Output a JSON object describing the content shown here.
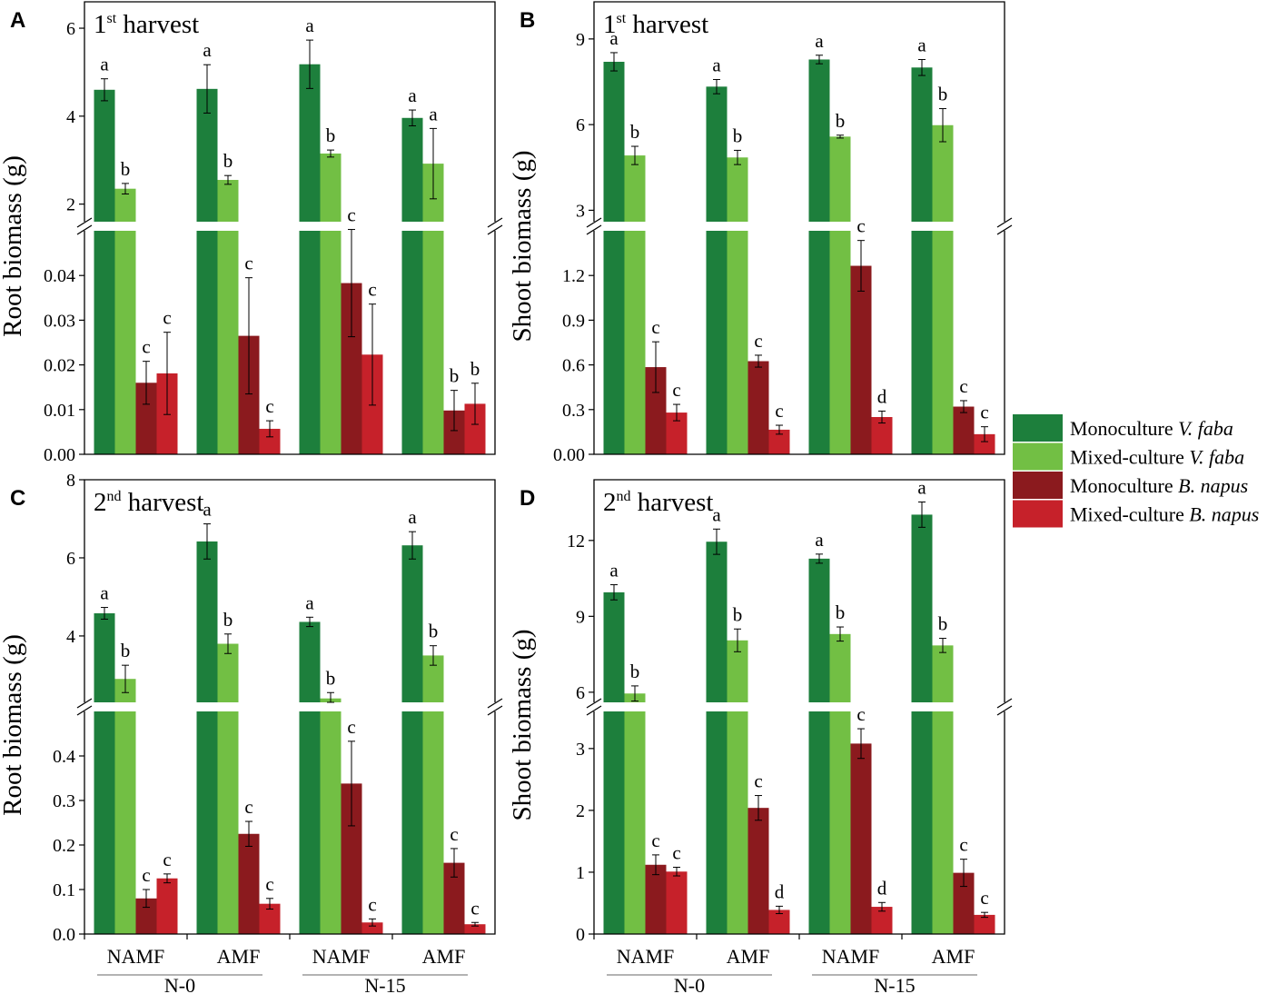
{
  "colors": {
    "mono_faba": "#1d7f3c",
    "mixed_faba": "#72bf44",
    "mono_napus": "#8b1a1e",
    "mixed_napus": "#c6212a",
    "group_line": "#9a9a9a"
  },
  "legend": {
    "items": [
      {
        "prefix": "Monoculture ",
        "species": "V. faba",
        "color_key": "mono_faba"
      },
      {
        "prefix": "Mixed-culture ",
        "species": "V. faba",
        "color_key": "mixed_faba"
      },
      {
        "prefix": "Monoculture ",
        "species": "B. napus",
        "color_key": "mono_napus"
      },
      {
        "prefix": "Mixed-culture ",
        "species": "B. napus",
        "color_key": "mixed_napus"
      }
    ]
  },
  "x_axis": {
    "categories": [
      "NAMF",
      "AMF",
      "NAMF",
      "AMF"
    ],
    "groups": [
      "N-0",
      "N-15"
    ]
  },
  "chart_data": [
    {
      "panel": "A",
      "type": "bar",
      "title_num": "1",
      "title_sup": "st",
      "title_rest": " harvest",
      "ylabel": "Root biomass (g)",
      "categories": [
        "NAMF",
        "AMF",
        "NAMF",
        "AMF"
      ],
      "groups": [
        "N-0",
        "N-15"
      ],
      "broken_axis": {
        "upper": {
          "range": [
            1.6,
            6.6
          ],
          "ticks": [
            "2",
            "4",
            "6"
          ],
          "tick_values": [
            2,
            4,
            6
          ]
        },
        "lower": {
          "range": [
            0,
            0.05
          ],
          "ticks": [
            "0.00",
            "0.01",
            "0.02",
            "0.03",
            "0.04"
          ],
          "tick_values": [
            0,
            0.01,
            0.02,
            0.03,
            0.04
          ]
        }
      },
      "series": [
        {
          "name": "Monoculture V. faba",
          "values": [
            4.6,
            4.62,
            5.18,
            3.96
          ],
          "errors": [
            0.25,
            0.55,
            0.55,
            0.18
          ],
          "letters": [
            "a",
            "a",
            "a",
            "a"
          ]
        },
        {
          "name": "Mixed-culture V. faba",
          "values": [
            2.35,
            2.55,
            3.15,
            2.92
          ],
          "errors": [
            0.12,
            0.1,
            0.08,
            0.8
          ],
          "letters": [
            "b",
            "b",
            "b",
            "a"
          ]
        },
        {
          "name": "Monoculture B. napus",
          "values": [
            0.016,
            0.0265,
            0.0383,
            0.0098
          ],
          "errors": [
            0.0048,
            0.013,
            0.012,
            0.0045
          ],
          "letters": [
            "c",
            "c",
            "c",
            "b"
          ]
        },
        {
          "name": "Mixed-culture B. napus",
          "values": [
            0.0181,
            0.0057,
            0.0223,
            0.0113
          ],
          "errors": [
            0.0092,
            0.0018,
            0.0113,
            0.0046
          ],
          "letters": [
            "c",
            "c",
            "c",
            "b"
          ]
        }
      ]
    },
    {
      "panel": "B",
      "type": "bar",
      "title_num": "1",
      "title_sup": "st",
      "title_rest": " harvest",
      "ylabel": "Shoot biomass (g)",
      "categories": [
        "NAMF",
        "AMF",
        "NAMF",
        "AMF"
      ],
      "groups": [
        "N-0",
        "N-15"
      ],
      "broken_axis": {
        "upper": {
          "range": [
            2.6,
            10.3
          ],
          "ticks": [
            "3",
            "6",
            "9"
          ],
          "tick_values": [
            3,
            6,
            9
          ]
        },
        "lower": {
          "range": [
            0,
            1.5
          ],
          "ticks": [
            "0.00",
            "0.3",
            "0.6",
            "0.9",
            "1.2"
          ],
          "tick_values": [
            0,
            0.3,
            0.6,
            0.9,
            1.2
          ]
        }
      },
      "series": [
        {
          "name": "Monoculture V. faba",
          "values": [
            8.2,
            7.33,
            8.28,
            8.0
          ],
          "errors": [
            0.32,
            0.25,
            0.15,
            0.28
          ],
          "letters": [
            "a",
            "a",
            "a",
            "a"
          ]
        },
        {
          "name": "Mixed-culture V. faba",
          "values": [
            4.92,
            4.85,
            5.58,
            5.98
          ],
          "errors": [
            0.32,
            0.25,
            0.05,
            0.58
          ],
          "letters": [
            "b",
            "b",
            "b",
            "b"
          ]
        },
        {
          "name": "Monoculture B. napus",
          "values": [
            0.585,
            0.625,
            1.265,
            0.32
          ],
          "errors": [
            0.17,
            0.04,
            0.17,
            0.04
          ],
          "letters": [
            "c",
            "c",
            "c",
            "c"
          ]
        },
        {
          "name": "Mixed-culture B. napus",
          "values": [
            0.28,
            0.165,
            0.25,
            0.135
          ],
          "errors": [
            0.055,
            0.03,
            0.04,
            0.05
          ],
          "letters": [
            "c",
            "c",
            "d",
            "c"
          ]
        }
      ]
    },
    {
      "panel": "C",
      "type": "bar",
      "title_num": "2",
      "title_sup": "nd",
      "title_rest": " harvest",
      "ylabel": "Root biomass (g)",
      "categories": [
        "NAMF",
        "AMF",
        "NAMF",
        "AMF"
      ],
      "groups": [
        "N-0",
        "N-15"
      ],
      "broken_axis": {
        "upper": {
          "range": [
            2.3,
            8.0
          ],
          "ticks": [
            "4",
            "6",
            "8"
          ],
          "tick_values": [
            4,
            6,
            8
          ]
        },
        "lower": {
          "range": [
            0,
            0.5
          ],
          "ticks": [
            "0.0",
            "0.1",
            "0.2",
            "0.3",
            "0.4"
          ],
          "tick_values": [
            0,
            0.1,
            0.2,
            0.3,
            0.4
          ]
        }
      },
      "series": [
        {
          "name": "Monoculture V. faba",
          "values": [
            4.58,
            6.42,
            4.36,
            6.32
          ],
          "errors": [
            0.15,
            0.45,
            0.12,
            0.35
          ],
          "letters": [
            "a",
            "a",
            "a",
            "a"
          ]
        },
        {
          "name": "Mixed-culture V. faba",
          "values": [
            2.9,
            3.8,
            2.4,
            3.5
          ],
          "errors": [
            0.35,
            0.25,
            0.15,
            0.25
          ],
          "letters": [
            "b",
            "b",
            "b",
            "b"
          ]
        },
        {
          "name": "Monoculture B. napus",
          "values": [
            0.08,
            0.225,
            0.338,
            0.16
          ],
          "errors": [
            0.02,
            0.028,
            0.095,
            0.032
          ],
          "letters": [
            "c",
            "c",
            "c",
            "c"
          ]
        },
        {
          "name": "Mixed-culture B. napus",
          "values": [
            0.125,
            0.068,
            0.026,
            0.022
          ],
          "errors": [
            0.01,
            0.012,
            0.008,
            0.004
          ],
          "letters": [
            "c",
            "c",
            "c",
            "c"
          ]
        }
      ]
    },
    {
      "panel": "D",
      "type": "bar",
      "title_num": "2",
      "title_sup": "nd",
      "title_rest": " harvest",
      "ylabel": "Shoot biomass (g)",
      "categories": [
        "NAMF",
        "AMF",
        "NAMF",
        "AMF"
      ],
      "groups": [
        "N-0",
        "N-15"
      ],
      "broken_axis": {
        "upper": {
          "range": [
            5.6,
            14.4
          ],
          "ticks": [
            "6",
            "9",
            "12"
          ],
          "tick_values": [
            6,
            9,
            12
          ]
        },
        "lower": {
          "range": [
            0,
            3.6
          ],
          "ticks": [
            "0",
            "1",
            "2",
            "3"
          ],
          "tick_values": [
            0,
            1,
            2,
            3
          ]
        }
      },
      "series": [
        {
          "name": "Monoculture V. faba",
          "values": [
            9.95,
            11.95,
            11.28,
            13.02
          ],
          "errors": [
            0.3,
            0.5,
            0.18,
            0.5
          ],
          "letters": [
            "a",
            "a",
            "a",
            "a"
          ]
        },
        {
          "name": "Mixed-culture V. faba",
          "values": [
            5.95,
            8.05,
            8.3,
            7.85
          ],
          "errors": [
            0.3,
            0.45,
            0.28,
            0.28
          ],
          "letters": [
            "b",
            "b",
            "b",
            "b"
          ]
        },
        {
          "name": "Monoculture B. napus",
          "values": [
            1.12,
            2.04,
            3.08,
            0.99
          ],
          "errors": [
            0.16,
            0.2,
            0.24,
            0.22
          ],
          "letters": [
            "c",
            "c",
            "c",
            "c"
          ]
        },
        {
          "name": "Mixed-culture B. napus",
          "values": [
            1.01,
            0.39,
            0.44,
            0.31
          ],
          "errors": [
            0.07,
            0.06,
            0.07,
            0.04
          ],
          "letters": [
            "c",
            "d",
            "d",
            "c"
          ]
        }
      ]
    }
  ]
}
